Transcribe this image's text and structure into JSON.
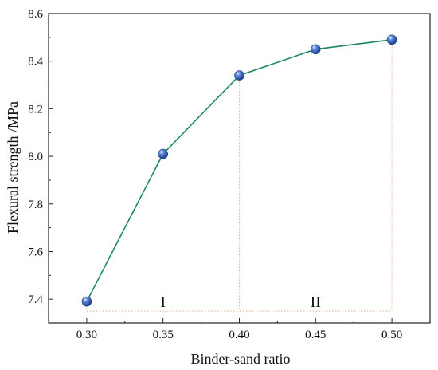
{
  "chart_data": {
    "type": "line",
    "title": "",
    "xlabel": "Binder-sand ratio",
    "ylabel": "Flexural strength /MPa",
    "x": [
      0.3,
      0.35,
      0.4,
      0.45,
      0.5
    ],
    "y": [
      7.39,
      8.01,
      8.34,
      8.45,
      8.49
    ],
    "xlim": [
      0.275,
      0.525
    ],
    "ylim": [
      7.3,
      8.6
    ],
    "x_ticks": [
      "0.30",
      "0.35",
      "0.40",
      "0.45",
      "0.50"
    ],
    "y_ticks": [
      "7.4",
      "7.6",
      "7.8",
      "8.0",
      "8.2",
      "8.4",
      "8.6"
    ],
    "grid": false,
    "line_color": "#1a8a5a",
    "marker_color": "#2f56a8",
    "guide_color": "#f2a880",
    "guide_y": 7.35,
    "guide_x": [
      0.3,
      0.4,
      0.5
    ],
    "regions": [
      {
        "label": "I",
        "x": 0.35,
        "y": 7.39
      },
      {
        "label": "II",
        "x": 0.45,
        "y": 7.39
      }
    ]
  }
}
